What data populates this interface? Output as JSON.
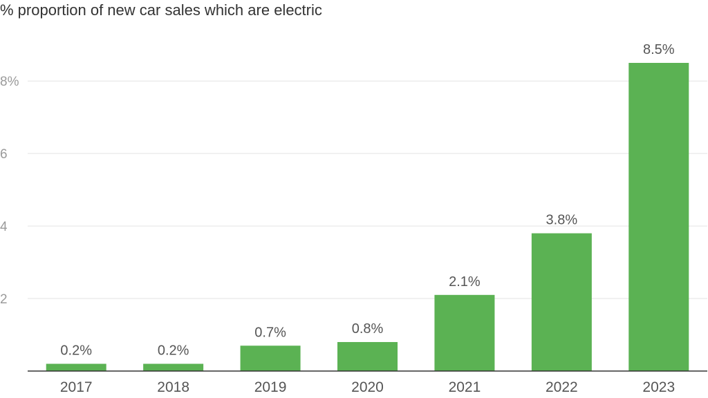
{
  "chart_data": {
    "type": "bar",
    "title": "% proportion of new car sales which are electric",
    "xlabel": "",
    "ylabel": "",
    "categories": [
      "2017",
      "2018",
      "2019",
      "2020",
      "2021",
      "2022",
      "2023"
    ],
    "values": [
      0.2,
      0.2,
      0.7,
      0.8,
      2.1,
      3.8,
      8.5
    ],
    "data_labels": [
      "0.2%",
      "0.2%",
      "0.7%",
      "0.8%",
      "2.1%",
      "3.8%",
      "8.5%"
    ],
    "ylim": [
      0,
      8.5
    ],
    "yticks": [
      2,
      4,
      6,
      8
    ],
    "ytick_labels": [
      "2",
      "4",
      "6",
      "8%"
    ],
    "grid": true,
    "legend": "none",
    "colors": {
      "bar": "#5bb253",
      "grid": "#e3e3e3",
      "axis": "#333333"
    }
  }
}
